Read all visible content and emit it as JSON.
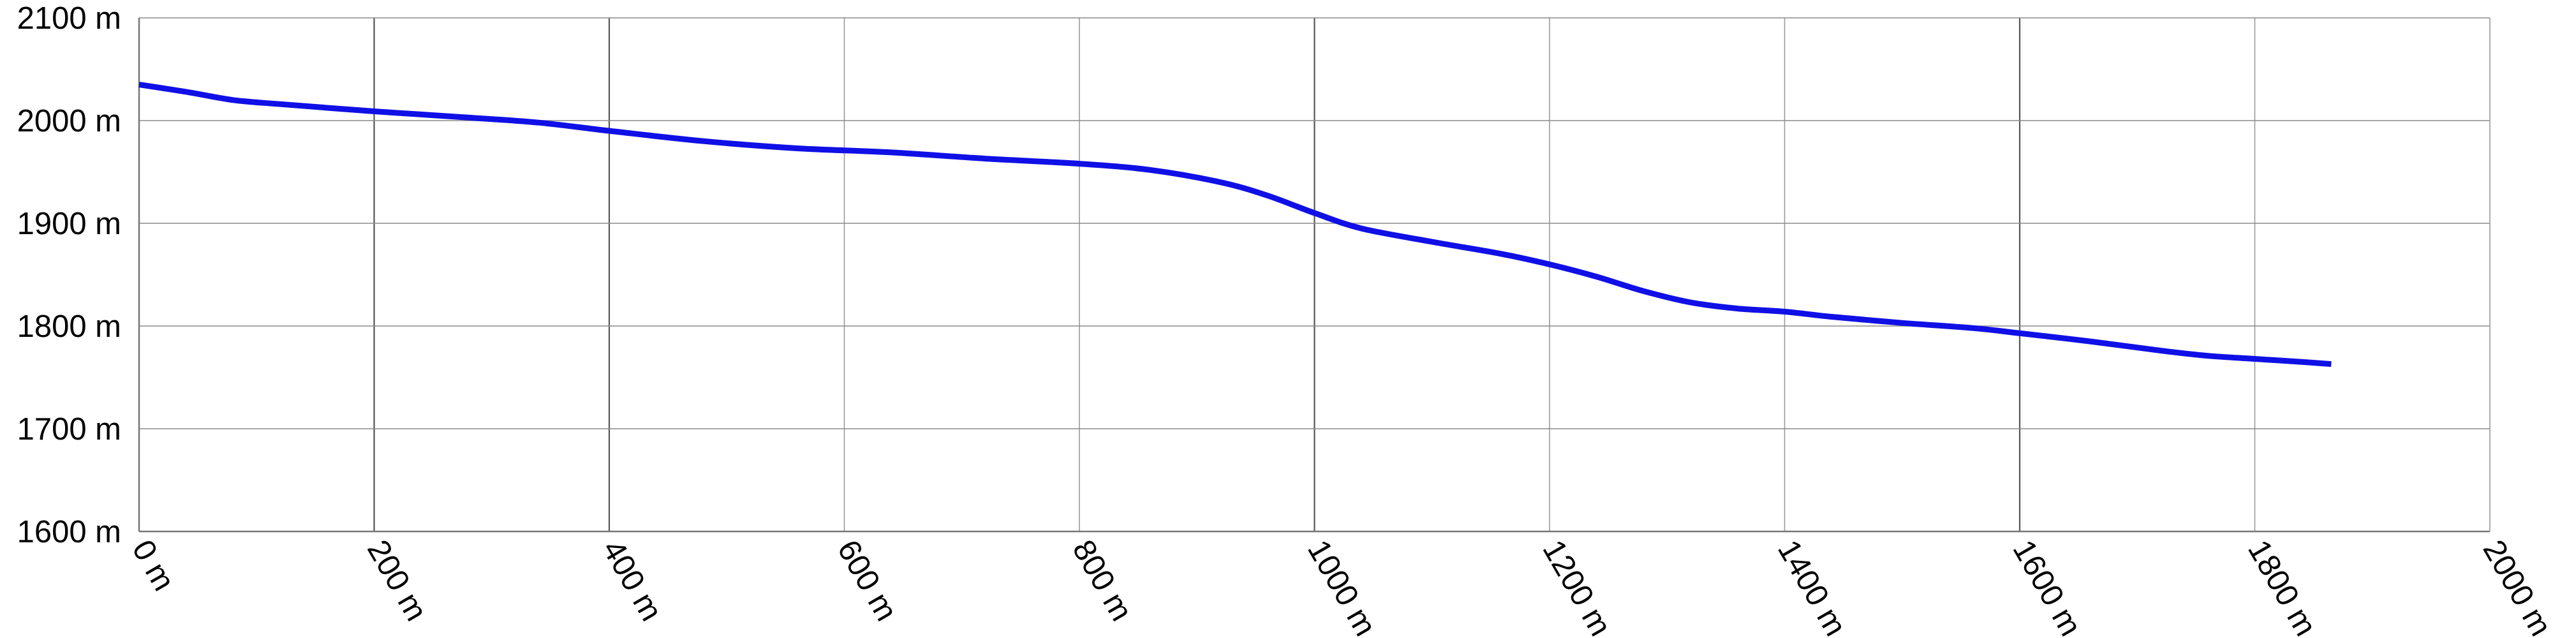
{
  "chart_data": {
    "type": "line",
    "title": "",
    "xlabel": "",
    "ylabel": "",
    "xlim": [
      0,
      2000
    ],
    "ylim": [
      1600,
      2100
    ],
    "x_ticks": [
      0,
      200,
      400,
      600,
      800,
      1000,
      1200,
      1400,
      1600,
      1800,
      2000
    ],
    "y_ticks": [
      1600,
      1700,
      1800,
      1900,
      2000,
      2100
    ],
    "x_tick_labels": [
      "0 m",
      "200 m",
      "400 m",
      "600 m",
      "800 m",
      "1000 m",
      "1200 m",
      "1400 m",
      "1600 m",
      "1800 m",
      "2000 m"
    ],
    "y_tick_labels": [
      "1600 m",
      "1700 m",
      "1800 m",
      "1900 m",
      "2000 m",
      "2100 m"
    ],
    "grid": true,
    "legend": "none",
    "series": [
      {
        "color": "#1010e6",
        "x": [
          0,
          40,
          80,
          120,
          200,
          280,
          340,
          400,
          480,
          560,
          640,
          720,
          800,
          860,
          920,
          960,
          1000,
          1040,
          1100,
          1160,
          1200,
          1240,
          1280,
          1320,
          1360,
          1400,
          1440,
          1500,
          1560,
          1600,
          1660,
          1720,
          1760,
          1800,
          1840,
          1865
        ],
        "y": [
          2035,
          2028,
          2020,
          2016,
          2009,
          2003,
          1998,
          1990,
          1980,
          1973,
          1969,
          1963,
          1958,
          1952,
          1940,
          1927,
          1910,
          1895,
          1882,
          1870,
          1860,
          1848,
          1834,
          1823,
          1817,
          1814,
          1809,
          1803,
          1798,
          1793,
          1785,
          1776,
          1771,
          1768,
          1765,
          1763
        ]
      }
    ]
  }
}
